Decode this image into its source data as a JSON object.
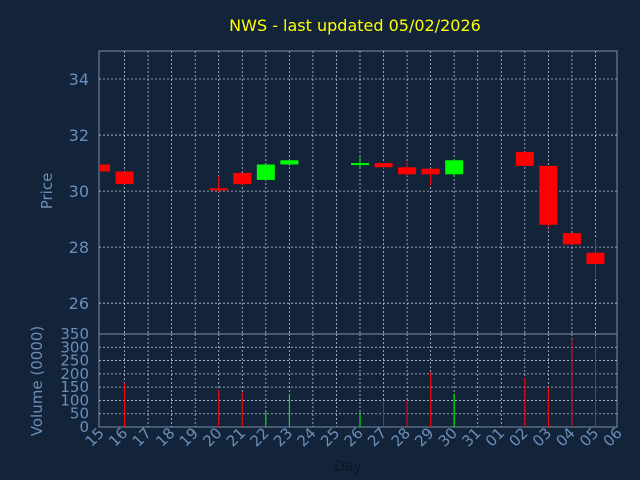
{
  "chart_data": [
    {
      "type": "candlestick",
      "title": "NWS - last updated 05/02/2026",
      "ylabel": "Price",
      "ylim": [
        24.9,
        35.0
      ],
      "yticks": [
        26,
        28,
        30,
        32,
        34
      ],
      "grid": true,
      "candles": [
        {
          "day": "15",
          "open": 30.95,
          "high": 30.95,
          "low": 30.7,
          "close": 30.7
        },
        {
          "day": "16",
          "open": 30.7,
          "high": 30.7,
          "low": 30.25,
          "close": 30.25
        },
        {
          "day": "17"
        },
        {
          "day": "18"
        },
        {
          "day": "19"
        },
        {
          "day": "20",
          "open": 30.1,
          "high": 30.55,
          "low": 29.95,
          "close": 30.05
        },
        {
          "day": "21",
          "open": 30.65,
          "high": 30.65,
          "low": 30.2,
          "close": 30.25
        },
        {
          "day": "22",
          "open": 30.4,
          "high": 30.95,
          "low": 30.4,
          "close": 30.95
        },
        {
          "day": "23",
          "open": 30.95,
          "high": 31.15,
          "low": 30.9,
          "close": 31.1
        },
        {
          "day": "24"
        },
        {
          "day": "25"
        },
        {
          "day": "26",
          "open": 30.95,
          "high": 31.2,
          "low": 30.85,
          "close": 31.0
        },
        {
          "day": "27",
          "open": 31.0,
          "high": 31.0,
          "low": 30.8,
          "close": 30.85
        },
        {
          "day": "28",
          "open": 30.85,
          "high": 31.05,
          "low": 30.55,
          "close": 30.6
        },
        {
          "day": "29",
          "open": 30.8,
          "high": 30.8,
          "low": 30.2,
          "close": 30.6
        },
        {
          "day": "30",
          "open": 30.6,
          "high": 31.15,
          "low": 30.5,
          "close": 31.1
        },
        {
          "day": "31"
        },
        {
          "day": "01"
        },
        {
          "day": "02",
          "open": 31.4,
          "high": 31.4,
          "low": 30.9,
          "close": 30.9
        },
        {
          "day": "03",
          "open": 30.9,
          "high": 30.9,
          "low": 28.7,
          "close": 28.8
        },
        {
          "day": "04",
          "open": 28.5,
          "high": 28.5,
          "low": 28.1,
          "close": 28.1
        },
        {
          "day": "05",
          "open": 27.8,
          "high": 28.3,
          "low": 26.9,
          "close": 27.4
        },
        {
          "day": "06"
        }
      ],
      "up_color": "#00ff00",
      "down_color": "#ff0000"
    },
    {
      "type": "bar",
      "ylabel": "Volume (0000)",
      "xlabel": "Day",
      "ylim": [
        0,
        350
      ],
      "yticks": [
        0,
        50,
        100,
        150,
        200,
        250,
        300,
        350
      ],
      "grid": true,
      "categories": [
        "15",
        "16",
        "17",
        "18",
        "19",
        "20",
        "21",
        "22",
        "23",
        "24",
        "25",
        "26",
        "27",
        "28",
        "29",
        "30",
        "31",
        "01",
        "02",
        "03",
        "04",
        "05",
        "06"
      ],
      "values": [
        0,
        165,
        0,
        0,
        0,
        140,
        130,
        60,
        120,
        0,
        0,
        55,
        95,
        100,
        205,
        125,
        0,
        0,
        185,
        150,
        330,
        340,
        0
      ],
      "directions": [
        "down",
        "down",
        "",
        "",
        "",
        "down",
        "down",
        "up",
        "up",
        "",
        "",
        "up",
        "down",
        "down",
        "down",
        "up",
        "",
        "",
        "down",
        "down",
        "down",
        "down",
        ""
      ]
    }
  ],
  "colors": {
    "background": "#13233a",
    "plot_border": "#7a8fa6",
    "grid": "#b8c6d6",
    "axis_label": "#6a8fb8",
    "title": "#ffff00"
  }
}
